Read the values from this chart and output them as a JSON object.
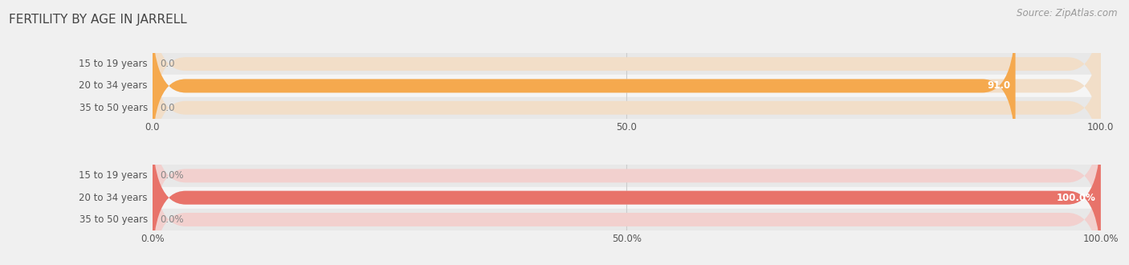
{
  "title": "Fertility by Age in Jarrell",
  "title_upper": "FERTILITY BY AGE IN JARRELL",
  "source": "Source: ZipAtlas.com",
  "top_chart": {
    "categories": [
      "15 to 19 years",
      "20 to 34 years",
      "35 to 50 years"
    ],
    "values": [
      0.0,
      91.0,
      0.0
    ],
    "xmax": 100.0,
    "xticks": [
      0.0,
      50.0,
      100.0
    ],
    "xtick_labels": [
      "0.0",
      "50.0",
      "100.0"
    ],
    "bar_color": "#F5A94E",
    "bar_bg_color": "#F2DEC8",
    "value_labels": [
      "0.0",
      "91.0",
      "0.0"
    ]
  },
  "bottom_chart": {
    "categories": [
      "15 to 19 years",
      "20 to 34 years",
      "35 to 50 years"
    ],
    "values": [
      0.0,
      100.0,
      0.0
    ],
    "xmax": 100.0,
    "xticks": [
      0.0,
      50.0,
      100.0
    ],
    "xtick_labels": [
      "0.0%",
      "50.0%",
      "100.0%"
    ],
    "bar_color": "#E8736A",
    "bar_bg_color": "#F2D0CE",
    "value_labels": [
      "0.0%",
      "100.0%",
      "0.0%"
    ]
  },
  "bg_color": "#f0f0f0",
  "row_colors": [
    "#e8e8e8",
    "#f5f5f5"
  ],
  "title_fontsize": 11,
  "label_fontsize": 8.5,
  "tick_fontsize": 8.5,
  "source_fontsize": 8.5,
  "category_label_color": "#555555"
}
